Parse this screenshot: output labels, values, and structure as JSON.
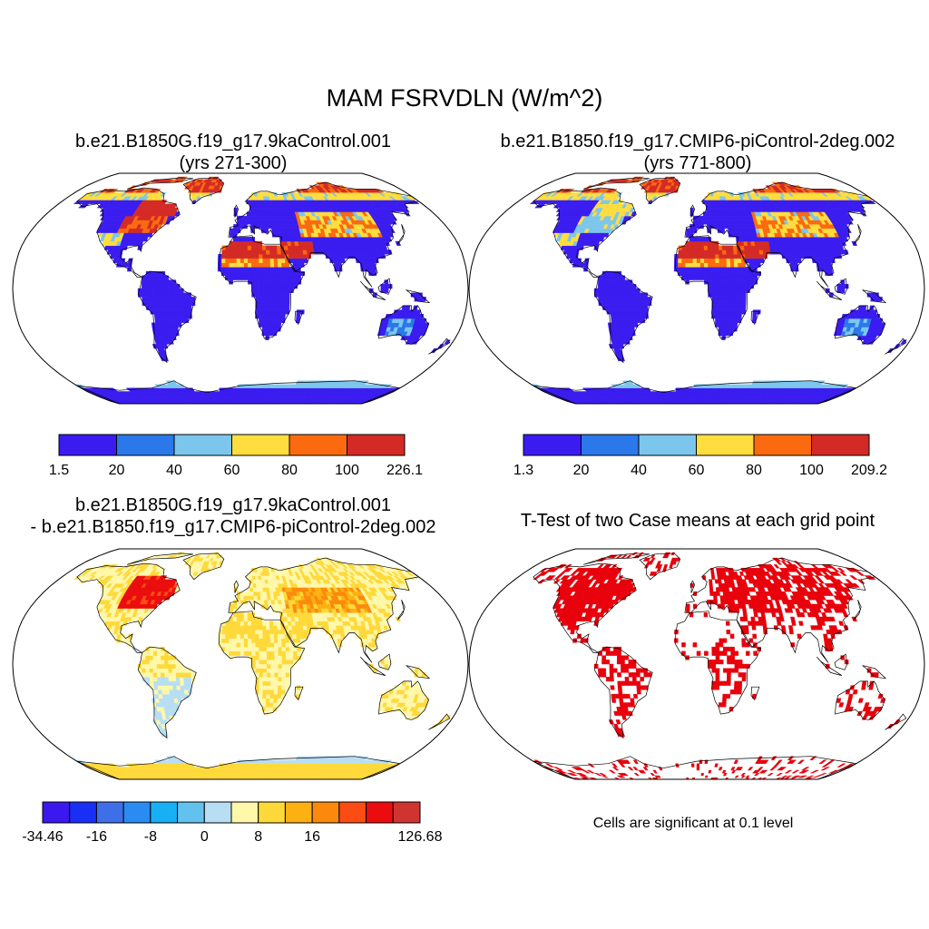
{
  "title": "MAM FSRVDLN (W/m^2)",
  "panels": [
    {
      "id": "case1",
      "title_line1": "b.e21.B1850G.f19_g17.9kaControl.001",
      "title_line2": "(yrs 271-300)",
      "colorbar": {
        "colors": [
          "#3a1cf0",
          "#2a78ea",
          "#7cc6ee",
          "#ffdd3e",
          "#fb6a0e",
          "#d42a26"
        ],
        "labels": [
          "1.5",
          "20",
          "40",
          "60",
          "80",
          "100",
          "226.1"
        ]
      }
    },
    {
      "id": "case2",
      "title_line1": "b.e21.B1850.f19_g17.CMIP6-piControl-2deg.002",
      "title_line2": "(yrs 771-800)",
      "colorbar": {
        "colors": [
          "#3a1cf0",
          "#2a78ea",
          "#7cc6ee",
          "#ffdd3e",
          "#fb6a0e",
          "#d42a26"
        ],
        "labels": [
          "1.3",
          "20",
          "40",
          "60",
          "80",
          "100",
          "209.2"
        ]
      }
    },
    {
      "id": "difference",
      "title_line1": "b.e21.B1850G.f19_g17.9kaControl.001",
      "title_line2": "- b.e21.B1850.f19_g17.CMIP6-piControl-2deg.002",
      "colorbar": {
        "colors": [
          "#3a18ee",
          "#1a2ff5",
          "#3f6fe8",
          "#2a8cf3",
          "#18b0f4",
          "#63c1ee",
          "#b7def3",
          "#fff7a9",
          "#ffd93a",
          "#fdb012",
          "#fb8a0c",
          "#fd4c13",
          "#eb0d0d",
          "#d03430"
        ],
        "labels": [
          "-34.46",
          "",
          "-16",
          "",
          "-8",
          "",
          "0",
          "",
          "8",
          "",
          "16",
          "",
          "",
          "",
          "126.68"
        ]
      }
    },
    {
      "id": "ttest",
      "title_line1": "T-Test of two Case means at each grid point",
      "note": "Cells are significant at 0.1 level",
      "fill_color": "#e8000b"
    }
  ]
}
